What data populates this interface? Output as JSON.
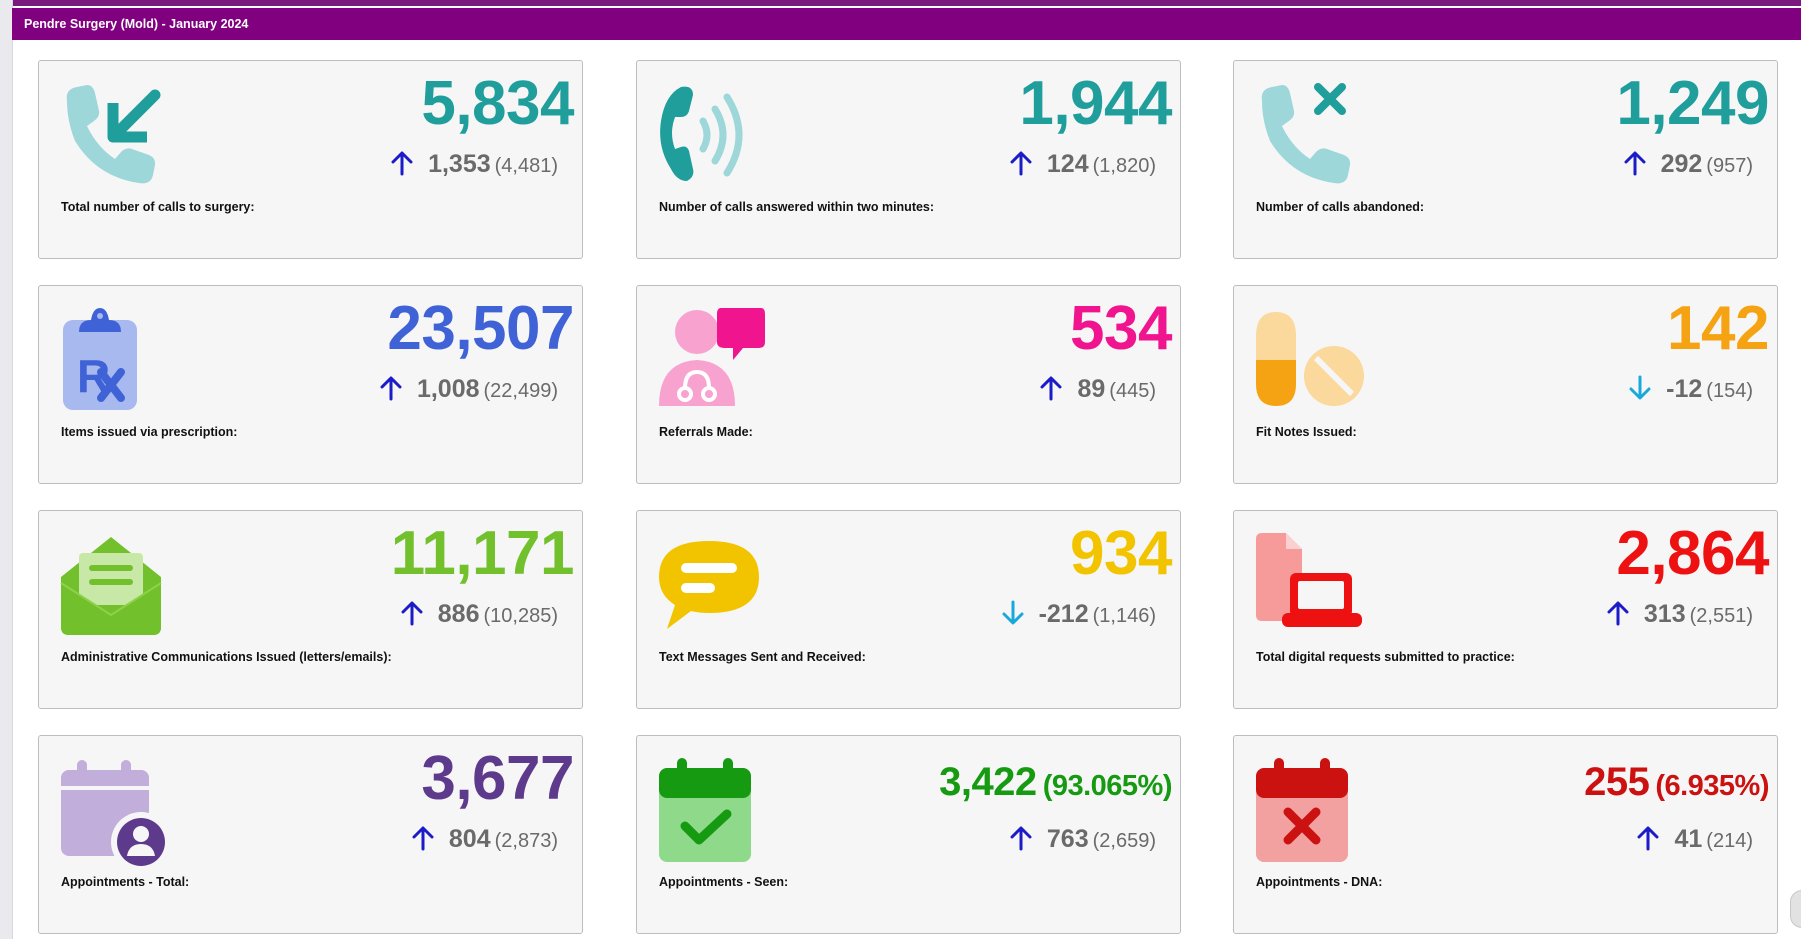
{
  "header": {
    "title": "Pendre Surgery (Mold) - January 2024"
  },
  "colors": {
    "header_bg": "#800080",
    "up_arrow": "#1b1bc9",
    "down_arrow": "#1aa8dc"
  },
  "cards": [
    {
      "label": "Total number of calls to surgery:",
      "value": "5,834",
      "change": "1,353",
      "previous": "(4,481)",
      "direction": "up",
      "value_color": "#1f9e9c",
      "icon": "phone-incoming-icon"
    },
    {
      "label": "Number of calls answered within two minutes:",
      "value": "1,944",
      "change": "124",
      "previous": "(1,820)",
      "direction": "up",
      "value_color": "#1f9e9c",
      "icon": "phone-ringing-icon"
    },
    {
      "label": "Number of calls abandoned:",
      "value": "1,249",
      "change": "292",
      "previous": "(957)",
      "direction": "up",
      "value_color": "#1f9e9c",
      "icon": "phone-missed-icon"
    },
    {
      "label": "Items issued via prescription:",
      "value": "23,507",
      "change": "1,008",
      "previous": "(22,499)",
      "direction": "up",
      "value_color": "#3f63d6",
      "icon": "prescription-clipboard-icon"
    },
    {
      "label": "Referrals Made:",
      "value": "534",
      "change": "89",
      "previous": "(445)",
      "direction": "up",
      "value_color": "#f0158f",
      "icon": "doctor-chat-icon"
    },
    {
      "label": "Fit Notes Issued:",
      "value": "142",
      "change": "-12",
      "previous": "(154)",
      "direction": "down",
      "value_color": "#f5a313",
      "icon": "pills-icon"
    },
    {
      "label": "Administrative Communications Issued (letters/emails):",
      "value": "11,171",
      "change": "886",
      "previous": "(10,285)",
      "direction": "up",
      "value_color": "#72c02c",
      "icon": "envelope-letter-icon"
    },
    {
      "label": "Text Messages Sent and Received:",
      "value": "934",
      "change": "-212",
      "previous": "(1,146)",
      "direction": "down",
      "value_color": "#f2c400",
      "icon": "speech-bubble-icon"
    },
    {
      "label": "Total digital requests submitted to practice:",
      "value": "2,864",
      "change": "313",
      "previous": "(2,551)",
      "direction": "up",
      "value_color": "#ee1111",
      "icon": "document-laptop-icon"
    },
    {
      "label": "Appointments - Total:",
      "value": "3,677",
      "pct": "",
      "change": "804",
      "previous": "(2,873)",
      "direction": "up",
      "value_color": "#5e3a8c",
      "icon": "calendar-user-icon"
    },
    {
      "label": "Appointments - Seen:",
      "value": "3,422",
      "pct": "(93.065%)",
      "change": "763",
      "previous": "(2,659)",
      "direction": "up",
      "value_color": "#159a12",
      "icon": "calendar-check-icon"
    },
    {
      "label": "Appointments - DNA:",
      "value": "255",
      "pct": "(6.935%)",
      "change": "41",
      "previous": "(214)",
      "direction": "up",
      "value_color": "#cc1111",
      "icon": "calendar-cross-icon"
    }
  ]
}
